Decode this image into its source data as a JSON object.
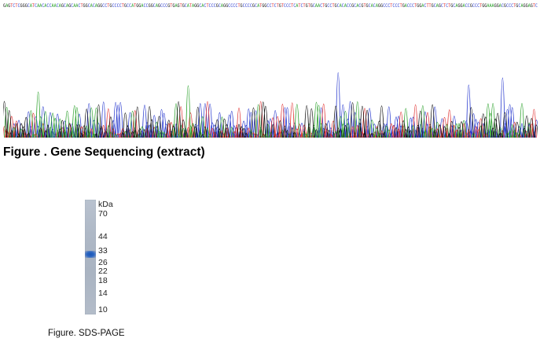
{
  "sequencing": {
    "caption": "Figure . Gene Sequencing (extract)",
    "bases": "GAGTCTCGGGCATCAACACCAACAGCAGCAACTGGCACAGGCCTGCCCCTGCCATGGACCGGCAGCCCGTGAGTGCATAGGCACTCCCGCAGGCCCCTGCCCCGCATGGCCTCTGTCCCTCATCTGTGCAACTGCCTGCACACCGCACGTGCACAGGCCCTCCCTGACCCTGGACTTGCAGCTCTGCAGGACCGCCCTGGAAAGGACGCCCTGCAGGAGTC",
    "colors": {
      "A": "#2aa02a",
      "C": "#2b3ccf",
      "G": "#111111",
      "T": "#e03030"
    }
  },
  "gel": {
    "unit": "kDa",
    "markers": [
      {
        "label": "70",
        "kda": 70
      },
      {
        "label": "44",
        "kda": 44
      },
      {
        "label": "33",
        "kda": 33
      },
      {
        "label": "26",
        "kda": 26
      },
      {
        "label": "22",
        "kda": 22
      },
      {
        "label": "18",
        "kda": 18
      },
      {
        "label": "14",
        "kda": 14
      },
      {
        "label": "10",
        "kda": 10
      }
    ],
    "band_kda": 31,
    "band_color": "#1c55b5",
    "caption": "Figure. SDS-PAGE"
  }
}
